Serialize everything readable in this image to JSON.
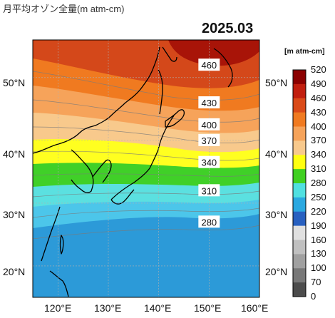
{
  "header": {
    "title": "月平均オゾン全量(m atm-cm)"
  },
  "map": {
    "date_label": "2025.03",
    "lat_labels": [
      "50°N",
      "40°N",
      "30°N",
      "20°N"
    ],
    "lat_values": [
      50,
      40,
      30,
      20
    ],
    "lon_labels": [
      "120°E",
      "130°E",
      "140°E",
      "150°E",
      "160°E"
    ],
    "lon_values": [
      120,
      130,
      140,
      150,
      160
    ],
    "lon_range": [
      115,
      160
    ],
    "lat_range": [
      15,
      56
    ],
    "contour_labels": [
      {
        "text": "460",
        "lon": 150,
        "lat": 52
      },
      {
        "text": "430",
        "lon": 150,
        "lat": 46
      },
      {
        "text": "400",
        "lon": 150,
        "lat": 42.5
      },
      {
        "text": "370",
        "lon": 150,
        "lat": 40
      },
      {
        "text": "340",
        "lon": 150,
        "lat": 36.5
      },
      {
        "text": "310",
        "lon": 150,
        "lat": 32
      },
      {
        "text": "280",
        "lon": 150,
        "lat": 27
      }
    ]
  },
  "colorbar": {
    "unit": "[m atm-cm]",
    "levels": [
      "520",
      "490",
      "460",
      "430",
      "400",
      "370",
      "340",
      "310",
      "280",
      "250",
      "220",
      "190",
      "160",
      "130",
      "100",
      "70",
      "0"
    ],
    "colors": [
      "#8b0000",
      "#c11e0e",
      "#da4a18",
      "#f07a20",
      "#f6a35a",
      "#f8c98c",
      "#ffff10",
      "#40d020",
      "#50e0e0",
      "#2aa8e0",
      "#2860c0",
      "#e0e0e0",
      "#c0c0c0",
      "#a0a0a0",
      "#787878",
      "#4c4c4c",
      "#202020"
    ]
  }
}
